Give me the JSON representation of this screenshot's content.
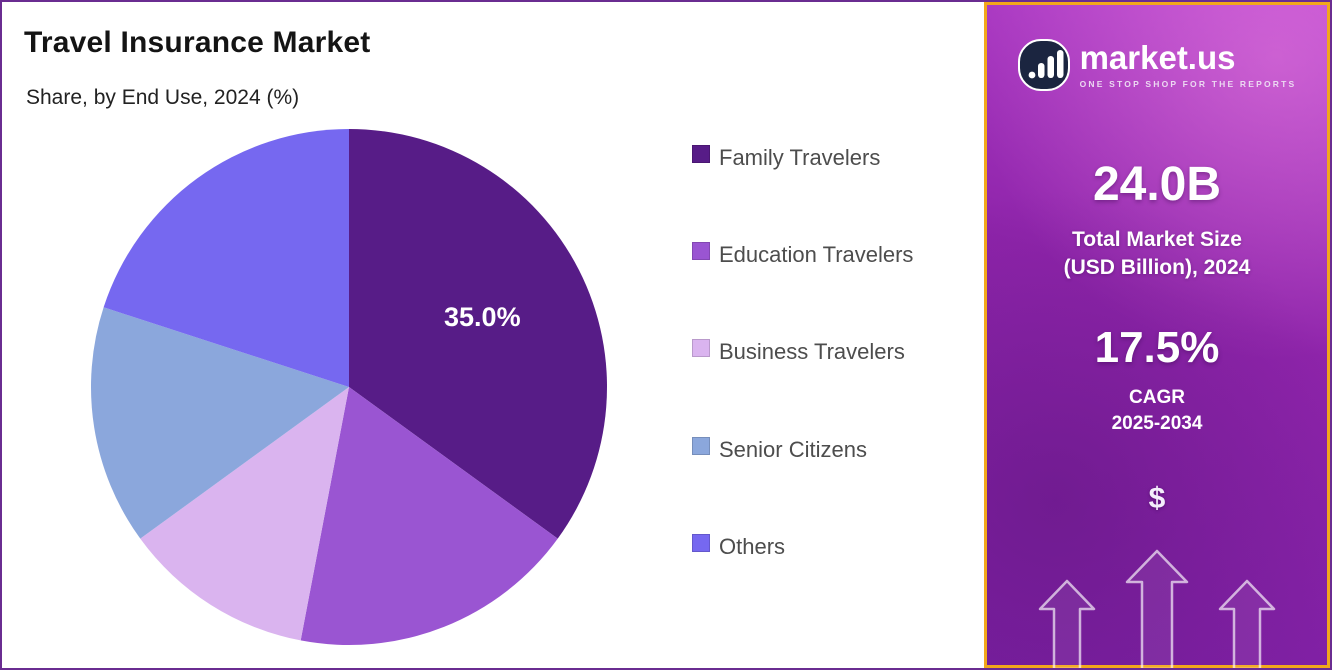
{
  "chart_data": {
    "type": "pie",
    "title": "Travel Insurance Market",
    "subtitle": "Share, by End Use, 2024 (%)",
    "unit": "%",
    "start_angle_deg": 0,
    "direction": "clockwise",
    "legend_position": "right",
    "series": [
      {
        "name": "Family Travelers",
        "value": 35.0,
        "color": "#571c87",
        "label": "35.0%"
      },
      {
        "name": "Education Travelers",
        "value": 18.0,
        "color": "#9a55d2",
        "label": ""
      },
      {
        "name": "Business Travelers",
        "value": 12.0,
        "color": "#dab4ef",
        "label": ""
      },
      {
        "name": "Senior Citizens",
        "value": 15.0,
        "color": "#8ba7dc",
        "label": ""
      },
      {
        "name": "Others",
        "value": 20.0,
        "color": "#7668f0",
        "label": ""
      }
    ]
  },
  "panel": {
    "brand": "market.us",
    "tagline": "ONE STOP SHOP FOR THE REPORTS",
    "market_size": {
      "value": "24.0B",
      "label_line1": "Total Market Size",
      "label_line2": "(USD Billion), 2024"
    },
    "cagr": {
      "value": "17.5%",
      "label_line1": "CAGR",
      "label_line2": "2025-2034"
    },
    "dollar": "$"
  },
  "colors": {
    "panel_border": "#f2a71b",
    "panel_gradient_top": "#b944cf",
    "panel_gradient_mid": "#8e24aa",
    "panel_gradient_bottom": "#7b1fa2",
    "title_text": "#141414",
    "legend_text": "#4d4d4d"
  }
}
